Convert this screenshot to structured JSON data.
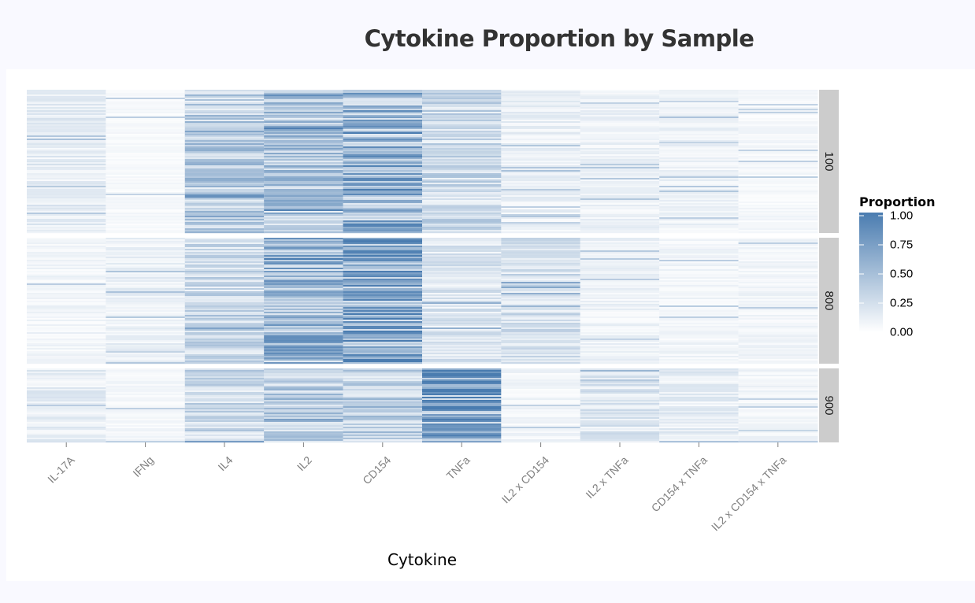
{
  "page": {
    "title": "Cytokine Proportion by Sample"
  },
  "chart_data": {
    "type": "heatmap",
    "title": "Cytokine Proportion by Sample",
    "xlabel": "Cytokine",
    "ylabel": "",
    "categories": [
      "IL-17A",
      "IFNg",
      "IL4",
      "IL2",
      "CD154",
      "TNFa",
      "IL2 x CD154",
      "IL2 x TNFa",
      "CD154 x TNFa",
      "IL2 x CD154 x TNFa"
    ],
    "facets": [
      "100",
      "800",
      "900"
    ],
    "legend": {
      "title": "Proportion",
      "ticks": [
        "1.00",
        "0.75",
        "0.50",
        "0.25",
        "0.00"
      ],
      "range": [
        0,
        1
      ],
      "color_low": "#ffffff",
      "color_high": "#4a7cb0",
      "placement": "right"
    },
    "mean_proportion": {
      "100": [
        0.15,
        0.05,
        0.4,
        0.45,
        0.6,
        0.3,
        0.12,
        0.1,
        0.1,
        0.06
      ],
      "800": [
        0.08,
        0.12,
        0.3,
        0.55,
        0.65,
        0.2,
        0.25,
        0.1,
        0.08,
        0.08
      ],
      "900": [
        0.14,
        0.06,
        0.3,
        0.4,
        0.4,
        0.75,
        0.08,
        0.2,
        0.14,
        0.08
      ]
    },
    "strip_color": "#cccccc"
  }
}
